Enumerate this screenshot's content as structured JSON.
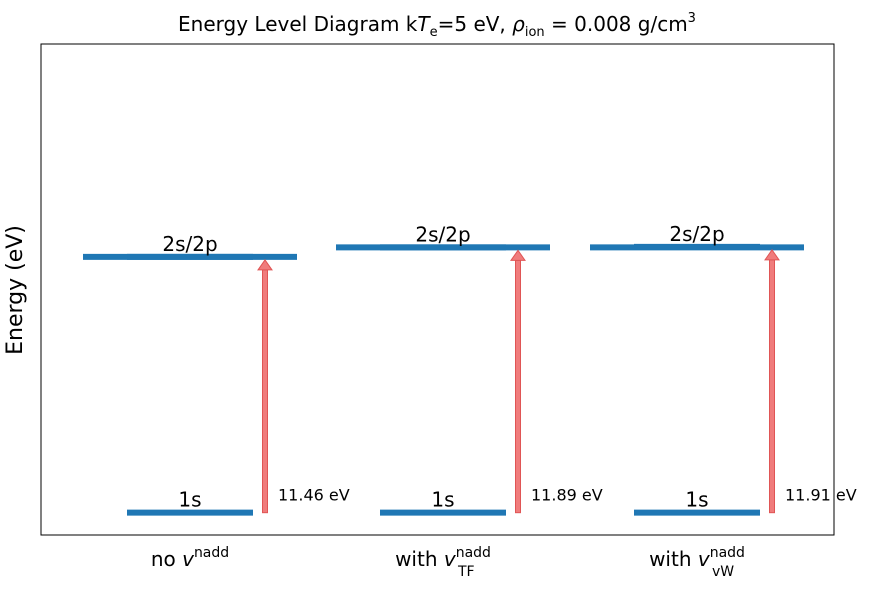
{
  "chart_data": {
    "type": "energy-level-diagram",
    "title": {
      "prefix": "Energy Level Diagram k",
      "T": "T",
      "T_sub": "e",
      "mid": "=5 eV, ",
      "rho": "ρ",
      "rho_sub": "ion",
      "suffix": " = 0.008 g/cm",
      "suffix_sup": "3"
    },
    "ylabel": "Energy (eV)",
    "ylim": [
      -1.0,
      21.0
    ],
    "grid": false,
    "categories": [
      {
        "prefix": "no ",
        "v": "v",
        "sup": "nadd",
        "sub": ""
      },
      {
        "prefix": "with ",
        "v": "v",
        "sup": "nadd",
        "sub": "TF"
      },
      {
        "prefix": "with ",
        "v": "v",
        "sup": "nadd",
        "sub": "vW"
      }
    ],
    "level_labels": [
      "1s",
      "2s/2p"
    ],
    "series": [
      {
        "E_1s": 0.0,
        "E_2s2p": 11.46,
        "E_2s2p_alt": 11.46,
        "annotation": "11.46 eV"
      },
      {
        "E_1s": 0.0,
        "E_2s2p": 11.89,
        "E_2s2p_alt": 11.89,
        "annotation": "11.89 eV"
      },
      {
        "E_1s": 0.0,
        "E_2s2p": 11.91,
        "E_2s2p_alt": 11.89,
        "annotation": "11.91 eV"
      }
    ],
    "colors": {
      "level": "#1f77b4",
      "arrow": "#f07c7c",
      "arrow_edge": "#e05555",
      "frame": "#000000"
    }
  }
}
